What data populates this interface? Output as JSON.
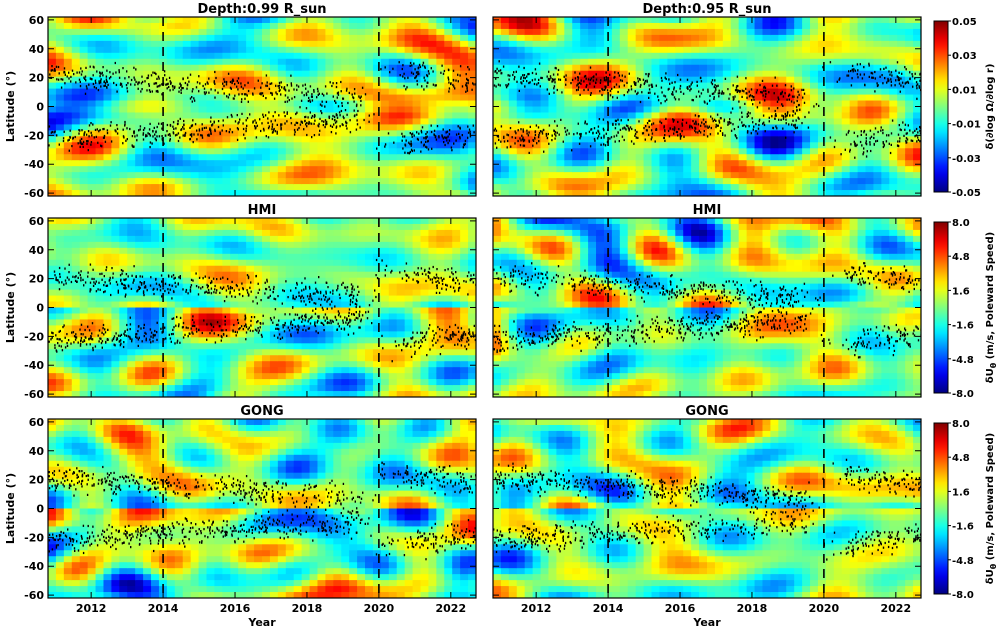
{
  "chart_data": {
    "type": "heatmap",
    "x_range": [
      2010.8,
      2022.7
    ],
    "y_range": [
      -62,
      62
    ],
    "x_ticks": [
      "2012",
      "2014",
      "2016",
      "2018",
      "2020",
      "2022"
    ],
    "y_ticks": [
      "60",
      "40",
      "20",
      "0",
      "-20",
      "-40",
      "-60"
    ],
    "xlabel": "Year",
    "ylabel": "Latitude (°)",
    "dashed_lines_x": [
      2014,
      2020
    ],
    "colormap": "jet",
    "panels": [
      {
        "title": "Depth:0.99 R_sun",
        "row": 0,
        "col": 0,
        "variant": 1
      },
      {
        "title": "Depth:0.95 R_sun",
        "row": 0,
        "col": 1,
        "variant": 2
      },
      {
        "title": "HMI",
        "row": 1,
        "col": 0,
        "variant": 3
      },
      {
        "title": "HMI",
        "row": 1,
        "col": 1,
        "variant": 4
      },
      {
        "title": "GONG",
        "row": 2,
        "col": 0,
        "variant": 5
      },
      {
        "title": "GONG",
        "row": 2,
        "col": 1,
        "variant": 6
      }
    ],
    "colorbars": [
      {
        "row": 0,
        "label": "δ(∂log Ω/∂log r)",
        "ticks": [
          "0.05",
          "0.03",
          "0.01",
          "-0.01",
          "-0.03",
          "-0.05"
        ],
        "range": [
          -0.05,
          0.05
        ]
      },
      {
        "row": 1,
        "label": "δU",
        "label_sub": "θ",
        "label_tail": " (m/s, Poleward Speed)",
        "ticks": [
          "8.0",
          "4.8",
          "1.6",
          "-1.6",
          "-4.8",
          "-8.0"
        ],
        "range": [
          -8.0,
          8.0
        ]
      },
      {
        "row": 2,
        "label": "δU",
        "label_sub": "θ",
        "label_tail": " (m/s, Poleward Speed)",
        "ticks": [
          "8.0",
          "4.8",
          "1.6",
          "-1.6",
          "-4.8",
          "-8.0"
        ],
        "range": [
          -8.0,
          8.0
        ]
      }
    ],
    "sunspot_band": {
      "start_lat": 22,
      "end_lat": 7,
      "width": 9
    }
  }
}
